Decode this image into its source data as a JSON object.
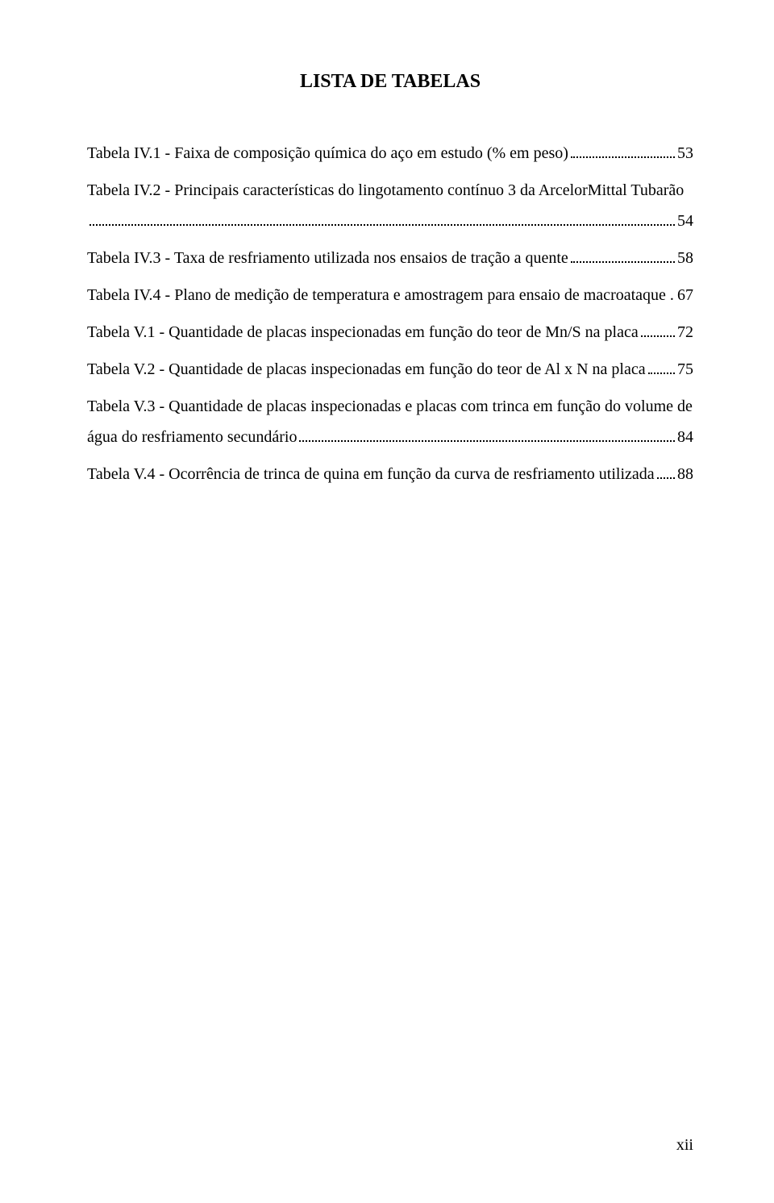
{
  "title": "LISTA DE TABELAS",
  "entries": [
    {
      "line1": "Tabela IV.1 - Faixa de composição química do aço em estudo (% em peso)",
      "page": "53"
    },
    {
      "line1": "Tabela IV.2 - Principais características do lingotamento contínuo 3 da ArcelorMittal Tubarão",
      "line2": "",
      "page": "54"
    },
    {
      "line1": "Tabela IV.3 - Taxa de resfriamento utilizada nos ensaios de tração a quente",
      "page": "58"
    },
    {
      "line1": "Tabela IV.4 - Plano de medição de temperatura e amostragem para ensaio de macroataque .",
      "page": "67",
      "nodots": true
    },
    {
      "line1": "Tabela V.1 - Quantidade de placas inspecionadas em função do teor de Mn/S na placa",
      "page": "72"
    },
    {
      "line1": "Tabela V.2 - Quantidade de placas inspecionadas em função do teor de Al x N na placa",
      "page": "75"
    },
    {
      "line1": "Tabela V.3 - Quantidade de placas inspecionadas e placas com trinca em função do volume de",
      "line2": "água do resfriamento secundário",
      "page": "84"
    },
    {
      "line1": "Tabela V.4 - Ocorrência de trinca de quina em função da curva de resfriamento utilizada",
      "page": "88"
    }
  ],
  "pageNumber": "xii"
}
